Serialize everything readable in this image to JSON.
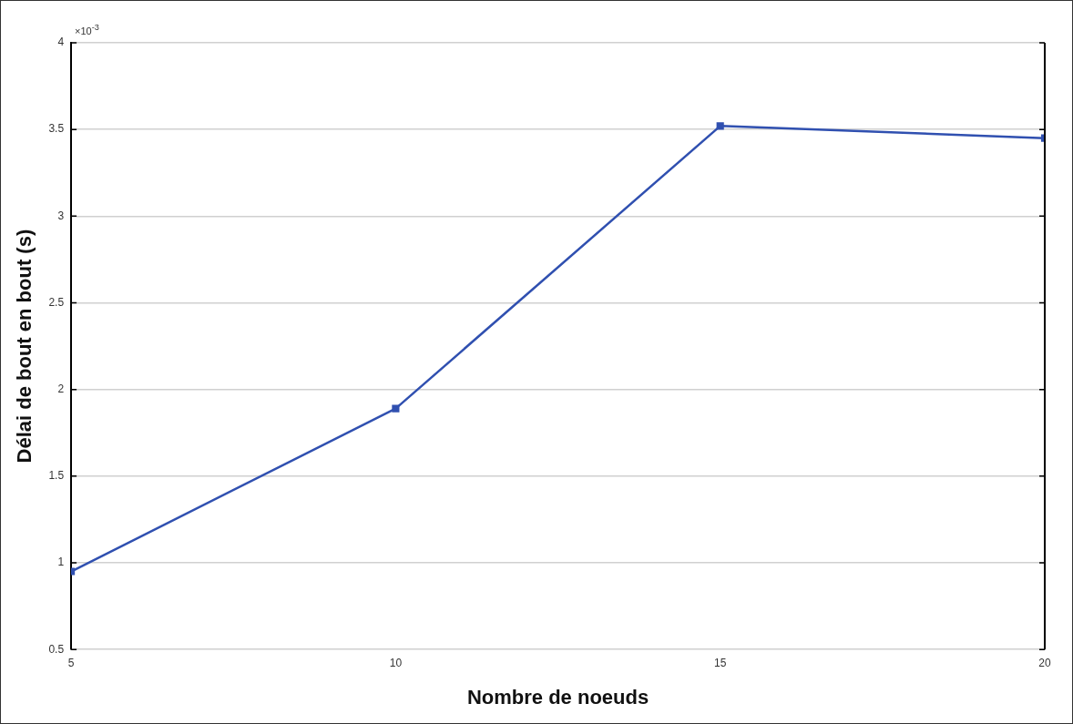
{
  "chart_data": {
    "type": "line",
    "xlabel": "Nombre de noeuds",
    "ylabel": "Délai de bout en bout (s)",
    "annotations": [
      "×10$^{-3}$"
    ],
    "x": [
      5,
      10,
      15,
      20
    ],
    "series": [
      {
        "color": "#3050b0",
        "values": [
          0.95,
          1.89,
          3.52,
          3.45
        ]
      }
    ],
    "xlim": [
      5,
      20
    ],
    "xticks": [
      5,
      10,
      15,
      20
    ],
    "ylim": [
      0.5,
      4
    ],
    "yticks": [
      0.5,
      1,
      1.5,
      2,
      2.5,
      3,
      3.5,
      4
    ],
    "grid": "y",
    "legend": false,
    "marker": "square",
    "line_style": "solid"
  }
}
